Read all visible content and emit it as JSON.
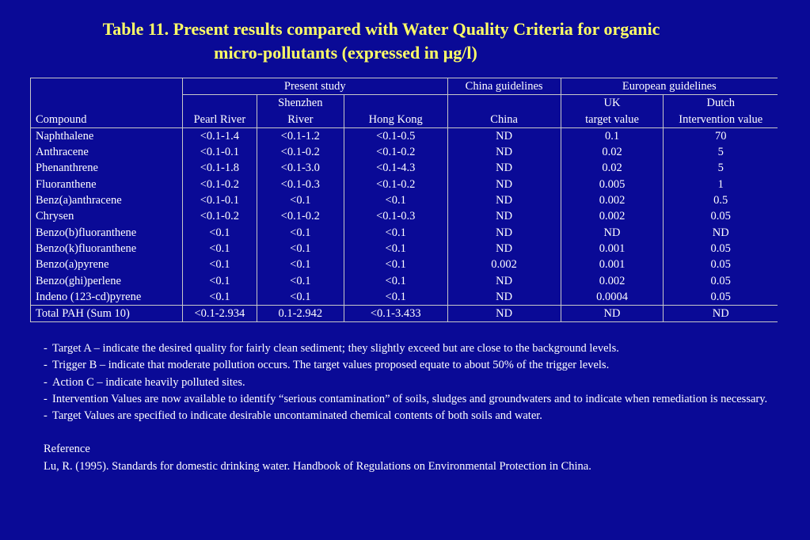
{
  "title": {
    "line1": "Table 11. Present results compared with Water Quality Criteria for organic",
    "line2": "micro-pollutants (expressed in µg/l)"
  },
  "table": {
    "groups": {
      "present": "Present study",
      "china": "China guidelines",
      "european": "European guidelines"
    },
    "headers": {
      "compound": "Compound",
      "pearl": "Pearl River",
      "shenzhen_1": "Shenzhen",
      "shenzhen_2": "River",
      "hongkong": "Hong Kong",
      "china": "China",
      "uk_1": "UK",
      "uk_2": "target value",
      "dutch_1": "Dutch",
      "dutch_2": "Intervention value"
    },
    "rows": [
      [
        "Naphthalene",
        "<0.1-1.4",
        "<0.1-1.2",
        "<0.1-0.5",
        "ND",
        "0.1",
        "70"
      ],
      [
        "Anthracene",
        "<0.1-0.1",
        "<0.1-0.2",
        "<0.1-0.2",
        "ND",
        "0.02",
        "5"
      ],
      [
        "Phenanthrene",
        "<0.1-1.8",
        "<0.1-3.0",
        "<0.1-4.3",
        "ND",
        "0.02",
        "5"
      ],
      [
        "Fluoranthene",
        "<0.1-0.2",
        "<0.1-0.3",
        "<0.1-0.2",
        "ND",
        "0.005",
        "1"
      ],
      [
        "Benz(a)anthracene",
        "<0.1-0.1",
        "<0.1",
        "<0.1",
        "ND",
        "0.002",
        "0.5"
      ],
      [
        "Chrysen",
        "<0.1-0.2",
        "<0.1-0.2",
        "<0.1-0.3",
        "ND",
        "0.002",
        "0.05"
      ],
      [
        "Benzo(b)fluoranthene",
        "<0.1",
        "<0.1",
        "<0.1",
        "ND",
        "ND",
        "ND"
      ],
      [
        "Benzo(k)fluoranthene",
        "<0.1",
        "<0.1",
        "<0.1",
        "ND",
        "0.001",
        "0.05"
      ],
      [
        "Benzo(a)pyrene",
        "<0.1",
        "<0.1",
        "<0.1",
        "0.002",
        "0.001",
        "0.05"
      ],
      [
        "Benzo(ghi)perlene",
        "<0.1",
        "<0.1",
        "<0.1",
        "ND",
        "0.002",
        "0.05"
      ],
      [
        "Indeno (123-cd)pyrene",
        "<0.1",
        "<0.1",
        "<0.1",
        "ND",
        "0.0004",
        "0.05"
      ]
    ],
    "total": [
      "Total PAH (Sum 10)",
      "<0.1-2.934",
      "0.1-2.942",
      "<0.1-3.433",
      "ND",
      "ND",
      "ND"
    ]
  },
  "notes": {
    "dash": "-",
    "items": [
      "Target A –  indicate the desired quality for fairly clean sediment; they slightly exceed but are close to the background levels.",
      "Trigger B – indicate that moderate pollution occurs.  The target values proposed equate to about 50% of the trigger levels.",
      "Action C – indicate heavily polluted sites.",
      "Intervention Values are now available to identify “serious contamination” of soils, sludges and groundwaters and to indicate when remediation is necessary.",
      "Target Values are specified to indicate desirable uncontaminated chemical contents of both soils and water."
    ]
  },
  "reference": {
    "heading": "Reference",
    "text": "Lu, R. (1995). Standards for domestic drinking water. Handbook of Regulations on Environmental Protection in China."
  },
  "colors": {
    "background": "#0a0a96",
    "title": "#ffff66",
    "text": "#ffffff",
    "rule": "#c8c8c8"
  }
}
